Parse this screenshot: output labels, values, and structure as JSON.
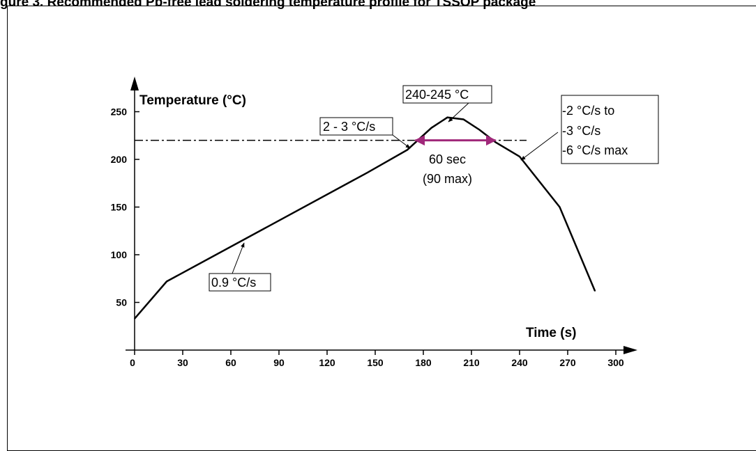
{
  "title": "gure 3. Recommended Pb-free lead soldering temperature profile for TSSOP package",
  "colors": {
    "curve": "#000000",
    "arrow_highlight": "#a0287a",
    "axes": "#000000"
  },
  "chart_data": {
    "type": "line",
    "title": "",
    "xlabel": "Time (s)",
    "ylabel": "Temperature (°C)",
    "xlim": [
      0,
      300
    ],
    "ylim": [
      0,
      250
    ],
    "xticks": [
      0,
      30,
      60,
      90,
      120,
      150,
      180,
      210,
      240,
      270,
      300
    ],
    "yticks": [
      50,
      100,
      150,
      200,
      250
    ],
    "series": [
      {
        "x": [
          0,
          20,
          145,
          170,
          185,
          195,
          205,
          215,
          225,
          240,
          265,
          287
        ],
        "y": [
          33,
          72,
          186,
          210,
          233,
          244,
          242,
          231,
          218,
          203,
          150,
          62
        ]
      }
    ],
    "reference_line": {
      "y": 220,
      "style": "dash-dot"
    },
    "span": {
      "x_start": 175,
      "x_end": 225,
      "y": 220,
      "label_lines": [
        "60 sec",
        "(90 max)"
      ]
    },
    "annotations": [
      {
        "text": "240-245 °C",
        "boxed": true
      },
      {
        "text": "2 - 3 °C/s",
        "boxed": true
      },
      {
        "lines": [
          "-2 °C/s to",
          "-3 °C/s",
          "-6 °C/s max"
        ],
        "boxed": true
      },
      {
        "text": "0.9 °C/s",
        "boxed": true
      }
    ]
  }
}
